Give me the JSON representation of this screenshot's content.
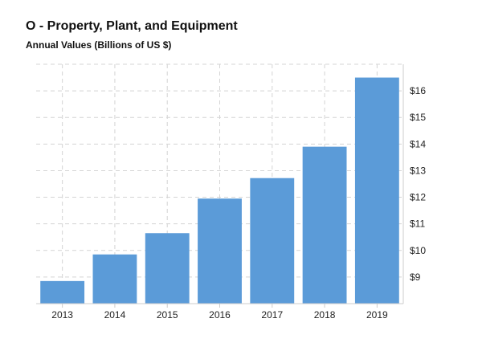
{
  "chart_data": {
    "type": "bar",
    "title": "O - Property, Plant, and Equipment",
    "subtitle": "Annual Values (Billions of US $)",
    "categories": [
      "2013",
      "2014",
      "2015",
      "2016",
      "2017",
      "2018",
      "2019"
    ],
    "values": [
      8.85,
      9.85,
      10.65,
      11.95,
      12.72,
      13.9,
      16.5
    ],
    "ylim": [
      8,
      17
    ],
    "yticks": [
      9,
      10,
      11,
      12,
      13,
      14,
      15,
      16
    ],
    "ytick_labels": [
      "$9",
      "$10",
      "$11",
      "$12",
      "$13",
      "$14",
      "$15",
      "$16"
    ],
    "xlabel": "",
    "ylabel": "",
    "grid": true,
    "y_axis_position": "right",
    "bar_color": "#5b9bd8"
  }
}
